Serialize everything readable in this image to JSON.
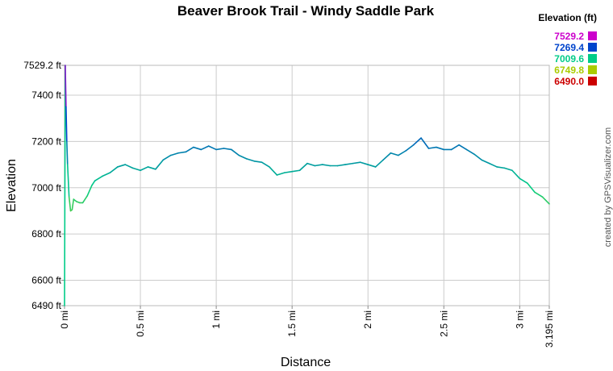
{
  "chart_data": {
    "type": "line",
    "title": "Beaver Brook Trail - Windy Saddle Park",
    "xlabel": "Distance",
    "ylabel": "Elevation",
    "xlim": [
      0,
      3.195
    ],
    "ylim": [
      6490,
      7529.2
    ],
    "grid": true,
    "x_tick_values": [
      0,
      0.5,
      1,
      1.5,
      2,
      2.5,
      3,
      3.195
    ],
    "x_tick_labels": [
      "0 mi",
      "0.5 mi",
      "1 mi",
      "1.5 mi",
      "2 mi",
      "2.5 mi",
      "3 mi",
      "3.195 mi"
    ],
    "y_tick_values": [
      6490,
      6600,
      6800,
      7000,
      7200,
      7400,
      7529.2
    ],
    "y_tick_labels": [
      "6490 ft",
      "6600 ft",
      "6800 ft",
      "7000 ft",
      "7200 ft",
      "7400 ft",
      "7529.2 ft"
    ],
    "legend": {
      "position": "top-right",
      "title": "Elevation (ft)",
      "entries": [
        {
          "label": "7529.2",
          "color": "#cc00cc"
        },
        {
          "label": "7269.4",
          "color": "#0044cc"
        },
        {
          "label": "7009.6",
          "color": "#00cc88"
        },
        {
          "label": "6749.8",
          "color": "#aacc00"
        },
        {
          "label": "6490.0",
          "color": "#cc0000"
        }
      ]
    },
    "color_scale": [
      "#cc0000",
      "#aacc00",
      "#00cc88",
      "#0044cc",
      "#cc00cc"
    ],
    "series": [
      {
        "x": [
          0,
          0.005,
          0.01,
          0.015,
          0.02,
          0.03,
          0.04,
          0.05,
          0.06,
          0.08,
          0.1,
          0.12,
          0.15,
          0.18,
          0.2,
          0.25,
          0.3,
          0.35,
          0.4,
          0.45,
          0.5,
          0.55,
          0.6,
          0.65,
          0.7,
          0.75,
          0.8,
          0.85,
          0.9,
          0.95,
          1.0,
          1.05,
          1.1,
          1.15,
          1.2,
          1.25,
          1.3,
          1.35,
          1.4,
          1.45,
          1.5,
          1.55,
          1.6,
          1.65,
          1.7,
          1.75,
          1.8,
          1.85,
          1.9,
          1.95,
          2.0,
          2.05,
          2.1,
          2.15,
          2.2,
          2.25,
          2.3,
          2.35,
          2.4,
          2.45,
          2.5,
          2.55,
          2.6,
          2.65,
          2.7,
          2.75,
          2.8,
          2.85,
          2.9,
          2.95,
          3.0,
          3.05,
          3.1,
          3.15,
          3.195
        ],
        "y": [
          6490,
          7529.2,
          7350,
          7200,
          7100,
          6960,
          6900,
          6905,
          6950,
          6940,
          6935,
          6935,
          6965,
          7010,
          7030,
          7050,
          7065,
          7090,
          7100,
          7085,
          7075,
          7090,
          7080,
          7120,
          7140,
          7150,
          7155,
          7175,
          7165,
          7180,
          7165,
          7170,
          7165,
          7140,
          7125,
          7115,
          7110,
          7090,
          7055,
          7065,
          7070,
          7075,
          7105,
          7095,
          7100,
          7095,
          7095,
          7100,
          7105,
          7110,
          7100,
          7090,
          7120,
          7150,
          7140,
          7160,
          7185,
          7215,
          7170,
          7175,
          7165,
          7165,
          7185,
          7165,
          7145,
          7120,
          7105,
          7090,
          7085,
          7075,
          7040,
          7020,
          6980,
          6960,
          6930
        ]
      }
    ]
  },
  "watermark": "created by GPSVisualizer.com"
}
